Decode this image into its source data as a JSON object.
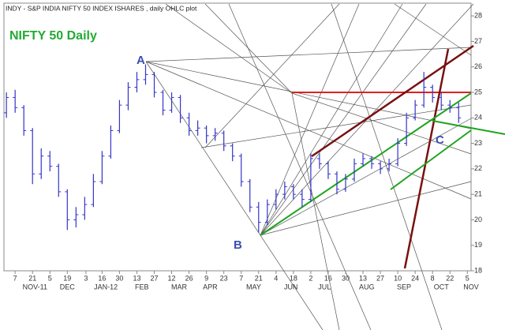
{
  "chart_data": {
    "type": "ohlc",
    "title": "INDY - S&P INDIA NIFTY 50 INDEX ISHARES , daily OHLC plot",
    "subtitle": "NIFTY 50 Daily",
    "annotations": [
      "A",
      "B",
      "C"
    ],
    "color": "#3434c8",
    "dates": [
      "2011-10-31",
      "2011-11-07",
      "2011-11-14",
      "2011-11-21",
      "2011-11-28",
      "2011-12-05",
      "2011-12-12",
      "2011-12-19",
      "2011-12-26",
      "2012-01-02",
      "2012-01-09",
      "2012-01-16",
      "2012-01-23",
      "2012-01-30",
      "2012-02-06",
      "2012-02-13",
      "2012-02-20",
      "2012-02-27",
      "2012-03-05",
      "2012-03-12",
      "2012-03-19",
      "2012-03-26",
      "2012-04-02",
      "2012-04-09",
      "2012-04-16",
      "2012-04-23",
      "2012-04-30",
      "2012-05-07",
      "2012-05-14",
      "2012-05-21",
      "2012-05-28",
      "2012-06-04",
      "2012-06-11",
      "2012-06-18",
      "2012-06-25",
      "2012-07-02",
      "2012-07-09",
      "2012-07-16",
      "2012-07-23",
      "2012-07-30",
      "2012-08-06",
      "2012-08-13",
      "2012-08-20",
      "2012-08-27",
      "2012-09-03",
      "2012-09-10",
      "2012-09-17",
      "2012-09-24",
      "2012-10-01",
      "2012-10-08",
      "2012-10-15",
      "2012-10-22",
      "2012-10-29"
    ],
    "open": [
      24.2,
      24.8,
      24.4,
      23.5,
      21.8,
      22.5,
      22.1,
      21.1,
      20.0,
      20.2,
      20.6,
      21.5,
      22.5,
      23.5,
      24.5,
      25.2,
      25.5,
      25.7,
      25.0,
      24.3,
      24.8,
      24.0,
      23.5,
      23.6,
      23.3,
      23.4,
      22.9,
      22.5,
      21.5,
      20.5,
      19.9,
      20.6,
      21.0,
      21.3,
      21.0,
      20.8,
      22.4,
      22.2,
      21.8,
      21.2,
      21.6,
      22.2,
      22.4,
      22.2,
      22.0,
      22.2,
      23.0,
      24.0,
      24.5,
      25.2,
      24.8,
      24.5,
      24.4
    ],
    "high": [
      25.0,
      25.1,
      24.5,
      23.6,
      22.8,
      22.7,
      22.2,
      21.2,
      20.5,
      20.9,
      21.8,
      22.7,
      23.7,
      24.7,
      25.4,
      25.8,
      26.1,
      25.8,
      25.1,
      25.0,
      24.9,
      24.2,
      23.9,
      23.7,
      23.6,
      23.5,
      23.0,
      22.6,
      21.6,
      20.7,
      20.8,
      21.2,
      21.5,
      21.4,
      21.2,
      22.6,
      22.6,
      22.3,
      21.9,
      21.8,
      22.4,
      22.6,
      22.5,
      22.3,
      22.4,
      23.2,
      24.2,
      24.7,
      25.8,
      25.3,
      25.0,
      24.7,
      24.6
    ],
    "low": [
      24.0,
      24.2,
      23.3,
      21.4,
      21.6,
      21.9,
      20.9,
      19.6,
      19.7,
      20.0,
      20.5,
      21.4,
      22.4,
      23.4,
      24.3,
      25.0,
      25.3,
      24.8,
      24.1,
      24.2,
      23.8,
      23.3,
      23.3,
      23.0,
      23.1,
      22.7,
      22.3,
      21.3,
      20.3,
      19.5,
      19.8,
      20.4,
      20.8,
      20.8,
      20.5,
      20.7,
      22.0,
      21.6,
      21.0,
      21.1,
      21.5,
      22.1,
      22.0,
      21.8,
      21.9,
      22.1,
      22.9,
      23.9,
      24.4,
      24.6,
      24.3,
      24.2,
      23.8
    ],
    "close": [
      24.8,
      24.4,
      23.5,
      21.8,
      22.5,
      22.1,
      21.1,
      20.0,
      20.2,
      20.6,
      21.5,
      22.5,
      23.5,
      24.5,
      25.2,
      25.5,
      25.7,
      25.0,
      24.3,
      24.8,
      24.0,
      23.5,
      23.6,
      23.3,
      23.4,
      22.9,
      22.5,
      21.5,
      20.5,
      19.9,
      20.6,
      21.0,
      21.3,
      21.0,
      20.8,
      22.4,
      22.2,
      21.8,
      21.2,
      21.6,
      22.2,
      22.4,
      22.2,
      22.0,
      22.2,
      23.0,
      24.0,
      24.5,
      25.2,
      24.8,
      24.5,
      24.4,
      24.0
    ],
    "xlim": [
      "2011-10-29",
      "2012-11-08"
    ],
    "xticks": [
      {
        "value": "2011-11-07",
        "label": "7"
      },
      {
        "value": "2011-11-21",
        "label": "21"
      },
      {
        "value": "2011-12-05",
        "label": "5"
      },
      {
        "value": "2011-12-19",
        "label": "19"
      },
      {
        "value": "2012-01-03",
        "label": "3"
      },
      {
        "value": "2012-01-16",
        "label": "16"
      },
      {
        "value": "2012-01-30",
        "label": "30"
      },
      {
        "value": "2012-02-13",
        "label": "13"
      },
      {
        "value": "2012-02-27",
        "label": "27"
      },
      {
        "value": "2012-03-12",
        "label": "12"
      },
      {
        "value": "2012-03-26",
        "label": "26"
      },
      {
        "value": "2012-04-09",
        "label": "9"
      },
      {
        "value": "2012-04-23",
        "label": "23"
      },
      {
        "value": "2012-05-07",
        "label": "7"
      },
      {
        "value": "2012-05-21",
        "label": "21"
      },
      {
        "value": "2012-06-04",
        "label": "4"
      },
      {
        "value": "2012-06-18",
        "label": "18"
      },
      {
        "value": "2012-07-02",
        "label": "2"
      },
      {
        "value": "2012-07-16",
        "label": "16"
      },
      {
        "value": "2012-07-30",
        "label": "30"
      },
      {
        "value": "2012-08-13",
        "label": "13"
      },
      {
        "value": "2012-08-27",
        "label": "27"
      },
      {
        "value": "2012-09-10",
        "label": "10"
      },
      {
        "value": "2012-09-24",
        "label": "24"
      },
      {
        "value": "2012-10-08",
        "label": "8"
      },
      {
        "value": "2012-10-22",
        "label": "22"
      },
      {
        "value": "2012-11-05",
        "label": "5"
      }
    ],
    "month_ticks": [
      {
        "value": "2011-11-23",
        "label": "NOV-11"
      },
      {
        "value": "2011-12-19",
        "label": "DEC"
      },
      {
        "value": "2012-01-19",
        "label": "JAN-12"
      },
      {
        "value": "2012-02-17",
        "label": "FEB"
      },
      {
        "value": "2012-03-18",
        "label": "MAR"
      },
      {
        "value": "2012-04-12",
        "label": "APR"
      },
      {
        "value": "2012-05-17",
        "label": "MAY"
      },
      {
        "value": "2012-06-16",
        "label": "JUN"
      },
      {
        "value": "2012-07-13",
        "label": "JUL"
      },
      {
        "value": "2012-08-16",
        "label": "AUG"
      },
      {
        "value": "2012-09-15",
        "label": "SEP"
      },
      {
        "value": "2012-10-15",
        "label": "OCT"
      },
      {
        "value": "2012-11-08",
        "label": "NOV"
      }
    ],
    "ylim": [
      18,
      28.5
    ],
    "yticks": [
      18,
      19,
      20,
      21,
      22,
      23,
      24,
      25,
      26,
      27,
      28
    ],
    "grid": false
  }
}
